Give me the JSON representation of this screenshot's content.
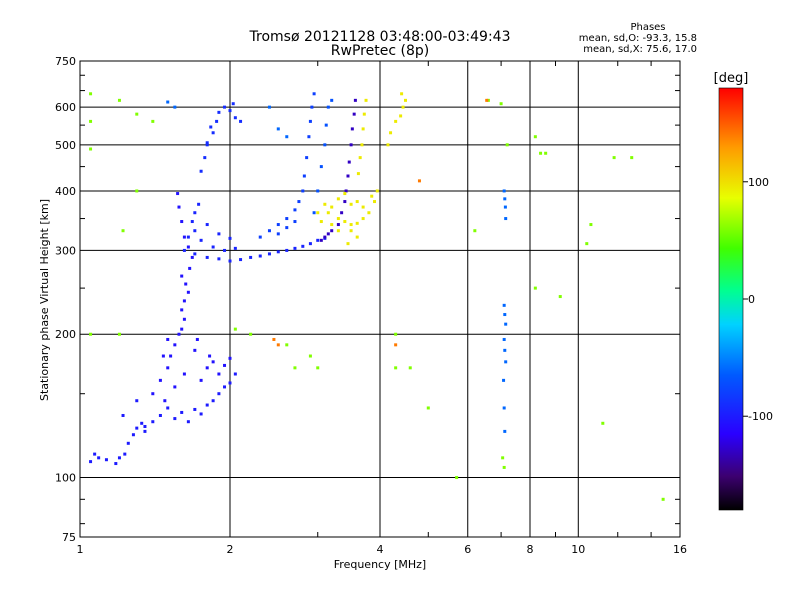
{
  "header": {
    "title_line1": "Tromsø 20121128 03:48:00-03:49:43",
    "title_line2": "RwPretec (8p)"
  },
  "legend_info": {
    "heading": "Phases",
    "line_o": "mean, sd,O: -93.3, 15.8",
    "line_x": "mean, sd,X:  75.6, 17.0"
  },
  "colorbar": {
    "label": "[deg]",
    "min": -180,
    "max": 180,
    "ticks": [
      {
        "value": 100,
        "label": "100"
      },
      {
        "value": 0,
        "label": "0"
      },
      {
        "value": -100,
        "label": "-100"
      }
    ]
  },
  "chart_data": {
    "type": "scatter",
    "title": "Tromsø 20121128 03:48:00-03:49:43",
    "subtitle": "RwPretec (8p)",
    "xlabel": "Frequency [MHz]",
    "ylabel": "Stationary phase Virtual Height [km]",
    "xscale": "log",
    "yscale": "log",
    "xlim": [
      1,
      16
    ],
    "ylim": [
      75,
      750
    ],
    "xticks": [
      {
        "value": 1,
        "label": "1"
      },
      {
        "value": 2,
        "label": "2"
      },
      {
        "value": 4,
        "label": "4"
      },
      {
        "value": 6,
        "label": "6"
      },
      {
        "value": 8,
        "label": "8"
      },
      {
        "value": 10,
        "label": "10"
      },
      {
        "value": 16,
        "label": "16"
      }
    ],
    "yticks": [
      {
        "value": 75,
        "label": "75"
      },
      {
        "value": 100,
        "label": "100"
      },
      {
        "value": 200,
        "label": "200"
      },
      {
        "value": 300,
        "label": "300"
      },
      {
        "value": 400,
        "label": "400"
      },
      {
        "value": 500,
        "label": "500"
      },
      {
        "value": 600,
        "label": "600"
      },
      {
        "value": 750,
        "label": "750"
      }
    ],
    "grid_x": [
      2,
      4,
      6,
      8,
      10
    ],
    "grid_y": [
      100,
      200,
      300,
      400,
      500,
      600
    ],
    "minor_x": [
      3,
      5,
      7,
      9,
      12,
      14
    ],
    "minor_y": [
      80,
      90,
      150,
      250,
      350,
      450,
      550,
      650,
      700
    ],
    "color_scale": "rainbow, -180 (black) to 180 (red) degrees",
    "points": [
      {
        "trace": "O",
        "phase": -100,
        "points": [
          [
            1.05,
            108
          ],
          [
            1.07,
            112
          ],
          [
            1.09,
            110
          ],
          [
            1.13,
            109
          ],
          [
            1.18,
            107
          ],
          [
            1.2,
            110
          ],
          [
            1.23,
            112
          ],
          [
            1.25,
            118
          ],
          [
            1.28,
            123
          ],
          [
            1.3,
            127
          ],
          [
            1.33,
            130
          ],
          [
            1.35,
            125
          ],
          [
            1.4,
            131
          ],
          [
            1.45,
            135
          ],
          [
            1.5,
            140
          ],
          [
            1.55,
            133
          ],
          [
            1.6,
            137
          ],
          [
            1.65,
            131
          ],
          [
            1.7,
            139
          ],
          [
            1.75,
            136
          ],
          [
            1.8,
            142
          ],
          [
            1.85,
            145
          ],
          [
            1.9,
            150
          ],
          [
            1.95,
            155
          ],
          [
            2.0,
            158
          ],
          [
            2.05,
            165
          ],
          [
            1.22,
            135
          ],
          [
            1.3,
            145
          ],
          [
            1.35,
            128
          ]
        ]
      },
      {
        "trace": "O",
        "phase": -105,
        "points": [
          [
            1.4,
            150
          ],
          [
            1.45,
            160
          ],
          [
            1.5,
            170
          ],
          [
            1.52,
            180
          ],
          [
            1.55,
            190
          ],
          [
            1.58,
            200
          ],
          [
            1.6,
            205
          ],
          [
            1.62,
            215
          ],
          [
            1.6,
            225
          ],
          [
            1.62,
            235
          ],
          [
            1.65,
            245
          ],
          [
            1.63,
            255
          ],
          [
            1.6,
            265
          ],
          [
            1.66,
            275
          ],
          [
            1.68,
            290
          ],
          [
            1.65,
            305
          ],
          [
            1.62,
            320
          ],
          [
            1.6,
            345
          ],
          [
            1.58,
            370
          ],
          [
            1.57,
            395
          ],
          [
            1.75,
            160
          ],
          [
            1.8,
            170
          ],
          [
            1.82,
            180
          ],
          [
            1.85,
            175
          ],
          [
            1.9,
            165
          ],
          [
            1.95,
            172
          ],
          [
            2.0,
            178
          ],
          [
            1.48,
            145
          ],
          [
            1.55,
            155
          ],
          [
            1.7,
            185
          ],
          [
            1.72,
            195
          ],
          [
            1.5,
            195
          ],
          [
            1.47,
            180
          ],
          [
            1.62,
            165
          ]
        ]
      },
      {
        "trace": "O",
        "phase": -95,
        "points": [
          [
            1.62,
            300
          ],
          [
            1.7,
            295
          ],
          [
            1.8,
            290
          ],
          [
            1.9,
            288
          ],
          [
            2.0,
            285
          ],
          [
            2.1,
            287
          ],
          [
            2.2,
            290
          ],
          [
            2.3,
            292
          ],
          [
            2.4,
            295
          ],
          [
            2.5,
            298
          ],
          [
            2.6,
            300
          ],
          [
            2.7,
            303
          ],
          [
            2.8,
            306
          ],
          [
            2.9,
            310
          ],
          [
            3.0,
            315
          ],
          [
            3.1,
            318
          ],
          [
            1.65,
            320
          ],
          [
            1.7,
            330
          ],
          [
            1.75,
            315
          ],
          [
            1.85,
            305
          ],
          [
            1.95,
            300
          ],
          [
            2.05,
            303
          ],
          [
            1.68,
            345
          ],
          [
            1.7,
            360
          ],
          [
            1.73,
            375
          ],
          [
            1.8,
            340
          ],
          [
            1.9,
            325
          ],
          [
            2.0,
            318
          ]
        ]
      },
      {
        "trace": "O",
        "phase": -90,
        "points": [
          [
            1.75,
            440
          ],
          [
            1.78,
            470
          ],
          [
            1.8,
            500
          ],
          [
            1.85,
            530
          ],
          [
            1.88,
            560
          ],
          [
            1.9,
            585
          ],
          [
            1.95,
            600
          ],
          [
            2.0,
            590
          ],
          [
            2.05,
            570
          ],
          [
            2.1,
            560
          ],
          [
            2.03,
            610
          ],
          [
            1.8,
            505
          ],
          [
            1.83,
            545
          ]
        ]
      },
      {
        "trace": "O",
        "phase": -80,
        "points": [
          [
            2.3,
            320
          ],
          [
            2.4,
            330
          ],
          [
            2.5,
            340
          ],
          [
            2.6,
            350
          ],
          [
            2.7,
            365
          ],
          [
            2.75,
            380
          ],
          [
            2.8,
            400
          ],
          [
            2.82,
            430
          ],
          [
            2.85,
            470
          ],
          [
            2.88,
            520
          ],
          [
            2.9,
            560
          ],
          [
            2.92,
            600
          ],
          [
            2.95,
            640
          ],
          [
            2.5,
            325
          ],
          [
            2.6,
            335
          ],
          [
            2.7,
            345
          ]
        ]
      },
      {
        "trace": "O",
        "phase": -130,
        "points": [
          [
            3.1,
            320
          ],
          [
            3.2,
            330
          ],
          [
            3.3,
            340
          ],
          [
            3.35,
            360
          ],
          [
            3.4,
            380
          ],
          [
            3.42,
            400
          ],
          [
            3.45,
            430
          ],
          [
            3.47,
            460
          ],
          [
            3.5,
            500
          ],
          [
            3.52,
            540
          ],
          [
            3.55,
            580
          ],
          [
            3.57,
            620
          ],
          [
            3.05,
            315
          ],
          [
            3.15,
            325
          ]
        ]
      },
      {
        "trace": "O",
        "phase": -70,
        "points": [
          [
            3.0,
            400
          ],
          [
            3.05,
            450
          ],
          [
            3.1,
            500
          ],
          [
            3.12,
            550
          ],
          [
            3.15,
            600
          ],
          [
            3.2,
            620
          ],
          [
            2.95,
            360
          ]
        ]
      },
      {
        "trace": "X",
        "phase": 95,
        "points": [
          [
            3.0,
            360
          ],
          [
            3.1,
            375
          ],
          [
            3.2,
            370
          ],
          [
            3.3,
            350
          ],
          [
            3.4,
            345
          ],
          [
            3.5,
            340
          ],
          [
            3.6,
            342
          ],
          [
            3.7,
            350
          ],
          [
            3.8,
            360
          ],
          [
            3.9,
            380
          ],
          [
            3.95,
            400
          ],
          [
            3.3,
            385
          ],
          [
            3.4,
            395
          ],
          [
            3.5,
            375
          ],
          [
            3.6,
            380
          ],
          [
            3.7,
            370
          ],
          [
            3.2,
            340
          ],
          [
            3.3,
            330
          ],
          [
            3.5,
            330
          ],
          [
            3.6,
            320
          ],
          [
            3.45,
            310
          ],
          [
            3.62,
            435
          ],
          [
            3.65,
            470
          ],
          [
            3.68,
            500
          ],
          [
            3.7,
            540
          ],
          [
            3.72,
            580
          ],
          [
            3.75,
            620
          ],
          [
            4.15,
            500
          ],
          [
            4.2,
            530
          ],
          [
            4.3,
            560
          ],
          [
            4.4,
            575
          ],
          [
            4.45,
            600
          ],
          [
            4.5,
            620
          ],
          [
            4.42,
            640
          ],
          [
            3.05,
            345
          ],
          [
            3.15,
            360
          ],
          [
            3.85,
            390
          ]
        ]
      },
      {
        "trace": "scatter",
        "phase": 60,
        "points": [
          [
            1.05,
            640
          ],
          [
            1.2,
            620
          ],
          [
            1.3,
            580
          ],
          [
            1.4,
            560
          ],
          [
            1.05,
            560
          ],
          [
            1.05,
            490
          ],
          [
            1.3,
            400
          ],
          [
            1.22,
            330
          ],
          [
            1.2,
            200
          ],
          [
            1.05,
            200
          ],
          [
            2.05,
            205
          ],
          [
            2.2,
            200
          ],
          [
            2.6,
            190
          ],
          [
            2.9,
            180
          ],
          [
            3.0,
            170
          ],
          [
            2.7,
            170
          ],
          [
            4.3,
            200
          ],
          [
            4.3,
            170
          ],
          [
            5.0,
            140
          ],
          [
            4.6,
            170
          ],
          [
            5.7,
            100
          ],
          [
            6.2,
            330
          ],
          [
            6.6,
            620
          ],
          [
            7.0,
            610
          ],
          [
            7.2,
            500
          ],
          [
            7.05,
            110
          ],
          [
            7.1,
            105
          ],
          [
            8.2,
            520
          ],
          [
            8.4,
            480
          ],
          [
            8.6,
            480
          ],
          [
            8.2,
            250
          ],
          [
            9.2,
            240
          ],
          [
            10.4,
            310
          ],
          [
            10.6,
            340
          ],
          [
            11.8,
            470
          ],
          [
            12.8,
            470
          ],
          [
            11.2,
            130
          ],
          [
            14.8,
            90
          ]
        ]
      },
      {
        "trace": "scatter",
        "phase": -60,
        "points": [
          [
            7.1,
            400
          ],
          [
            7.12,
            385
          ],
          [
            7.14,
            370
          ],
          [
            7.15,
            350
          ],
          [
            7.1,
            230
          ],
          [
            7.12,
            220
          ],
          [
            7.15,
            210
          ],
          [
            7.1,
            195
          ],
          [
            7.12,
            185
          ],
          [
            7.15,
            175
          ],
          [
            7.08,
            160
          ],
          [
            7.1,
            140
          ],
          [
            7.12,
            125
          ],
          [
            1.55,
            600
          ],
          [
            2.4,
            600
          ],
          [
            2.5,
            540
          ],
          [
            2.6,
            520
          ],
          [
            1.5,
            615
          ]
        ]
      },
      {
        "trace": "scatter",
        "phase": 140,
        "points": [
          [
            2.45,
            195
          ],
          [
            2.5,
            190
          ],
          [
            6.55,
            620
          ],
          [
            4.3,
            190
          ],
          [
            4.8,
            420
          ]
        ]
      }
    ]
  }
}
